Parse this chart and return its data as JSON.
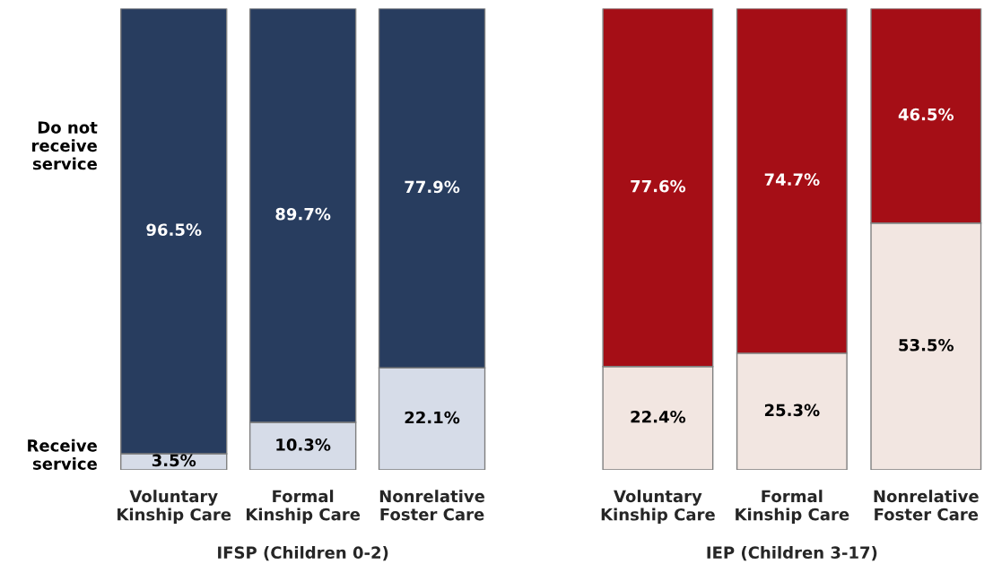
{
  "chart_data": [
    {
      "type": "bar",
      "stacked": true,
      "xlabel": "IFSP (Children 0-2)",
      "categories": [
        "Voluntary\nKinship Care",
        "Formal\nKinship Care",
        "Nonrelative\nFoster Care"
      ],
      "ylim": [
        0,
        100
      ],
      "tick_labels": "x",
      "grid": false,
      "legend": false,
      "series": [
        {
          "name": "Receive\nservice",
          "color": "#d6dce8",
          "values": [
            3.5,
            10.3,
            22.1
          ],
          "value_labels": [
            "3.5%",
            "10.3%",
            "22.1%"
          ]
        },
        {
          "name": "Do not\nreceive\nservice",
          "color": "#283d5f",
          "values": [
            96.5,
            89.7,
            77.9
          ],
          "value_labels": [
            "96.5%",
            "89.7%",
            "77.9%"
          ]
        }
      ]
    },
    {
      "type": "bar",
      "stacked": true,
      "xlabel": "IEP (Children 3-17)",
      "categories": [
        "Voluntary\nKinship Care",
        "Formal\nKinship Care",
        "Nonrelative\nFoster Care"
      ],
      "ylim": [
        0,
        100
      ],
      "tick_labels": "x",
      "grid": false,
      "legend": false,
      "series": [
        {
          "color": "#f2e6e1",
          "values": [
            22.4,
            25.3,
            53.5
          ],
          "value_labels": [
            "22.4%",
            "25.3%",
            "53.5%"
          ]
        },
        {
          "color": "#a50e16",
          "values": [
            77.6,
            74.7,
            46.5
          ],
          "value_labels": [
            "77.6%",
            "74.7%",
            "46.5%"
          ]
        }
      ]
    }
  ]
}
